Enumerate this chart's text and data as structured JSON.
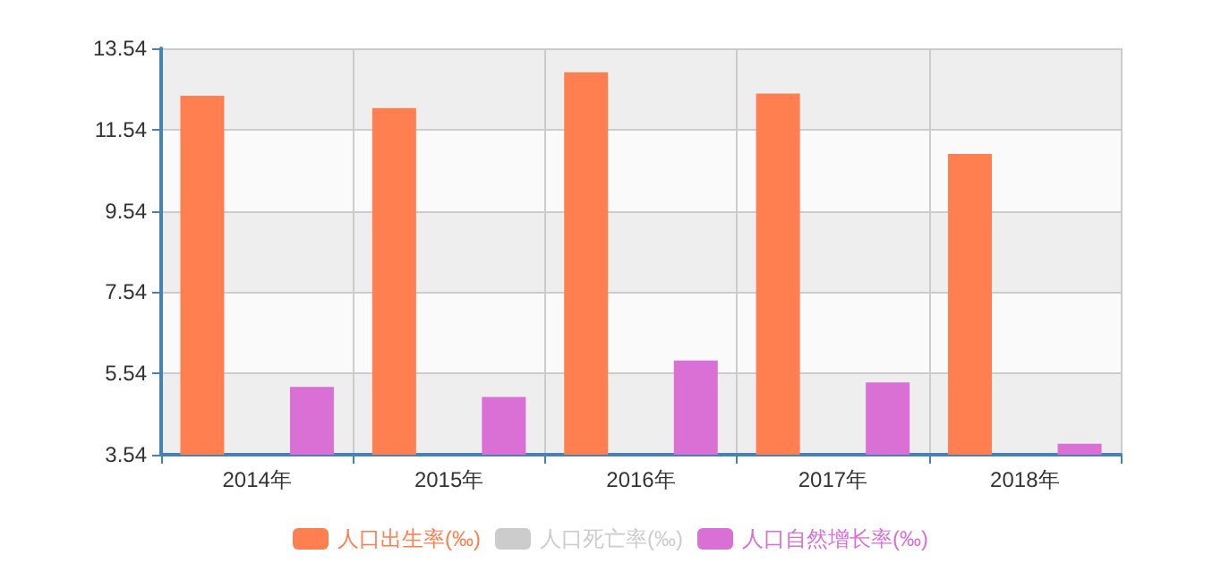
{
  "chart_data": {
    "type": "bar",
    "categories": [
      "2014年",
      "2015年",
      "2016年",
      "2017年",
      "2018年"
    ],
    "series": [
      {
        "name": "人口出生率(‰)",
        "color": "#ff7f50",
        "values": [
          12.37,
          12.07,
          12.95,
          12.43,
          10.94
        ]
      },
      {
        "name": "人口死亡率(‰)",
        "color": "#cccccc",
        "values": [
          null,
          null,
          null,
          null,
          null
        ]
      },
      {
        "name": "人口自然增长率(‰)",
        "color": "#da70d6",
        "values": [
          5.21,
          4.96,
          5.86,
          5.32,
          3.81
        ]
      }
    ],
    "ylim": [
      3.54,
      13.54
    ],
    "yticks": [
      3.54,
      5.54,
      7.54,
      9.54,
      11.54,
      13.54
    ],
    "grid": true,
    "legend": "bottom"
  }
}
